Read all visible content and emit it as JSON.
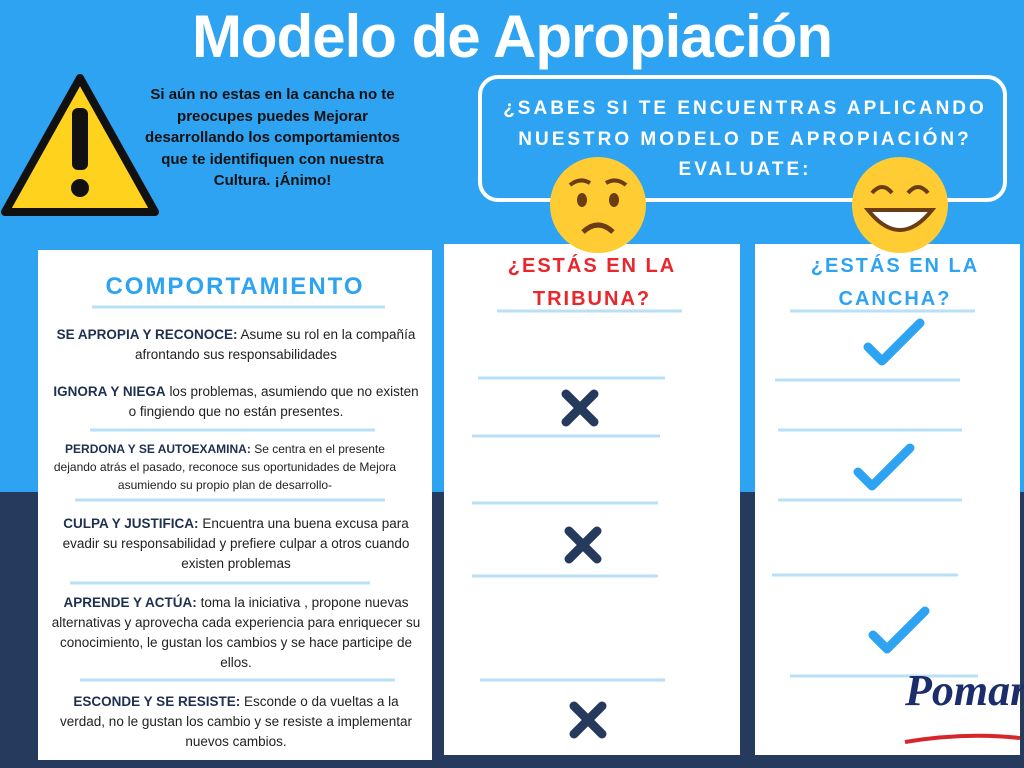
{
  "header": {
    "title": "Modelo de Apropiación"
  },
  "warning": {
    "text": "Si aún no estas en la cancha no te preocupes puedes Mejorar desarrollando los comportamientos que te identifiquen con nuestra Cultura. ¡Ánimo!"
  },
  "question": {
    "lines": [
      "¿SABES SI TE ENCUENTRAS APLICANDO",
      "NUESTRO MODELO DE APROPIACIÓN?",
      "EVALUATE:"
    ]
  },
  "columns": [
    {
      "lines": [
        "¿ESTÁS EN LA",
        "TRIBUNA?"
      ]
    },
    {
      "lines": [
        "¿ESTÁS EN LA",
        "CANCHA?"
      ]
    }
  ],
  "table": {
    "heading": "COMPORTAMIENTO",
    "rows": [
      {
        "name": "SE APROPIA Y RECONOCE:",
        "text": "Asume su rol en la compañía afrontando sus responsabilidades"
      },
      {
        "name": "IGNORA Y NIEGA",
        "text": "los problemas, asumiendo que no existen o fingiendo que no están presentes."
      },
      {
        "name": "PERDONA Y SE AUTOEXAMINA:",
        "text": "Se centra en el presente dejando atrás el pasado, reconoce sus oportunidades de Mejora asumiendo su propio plan de desarrollo-"
      },
      {
        "name": "CULPA Y JUSTIFICA:",
        "text": "Encuentra una buena excusa para evadir su responsabilidad y prefiere culpar a otros cuando existen problemas"
      },
      {
        "name": "APRENDE Y ACTÚA:",
        "text": "toma la iniciativa , propone nuevas alternativas y aprovecha cada experiencia para enriquecer su conocimiento, le gustan los cambios y se hace participe de ellos."
      },
      {
        "name": "ESCONDE Y SE RESISTE:",
        "text": "Esconde o da vueltas a la verdad, no le gustan los cambio y se resiste a implementar nuevos cambios."
      }
    ]
  },
  "logo": {
    "text": "Pomar"
  }
}
